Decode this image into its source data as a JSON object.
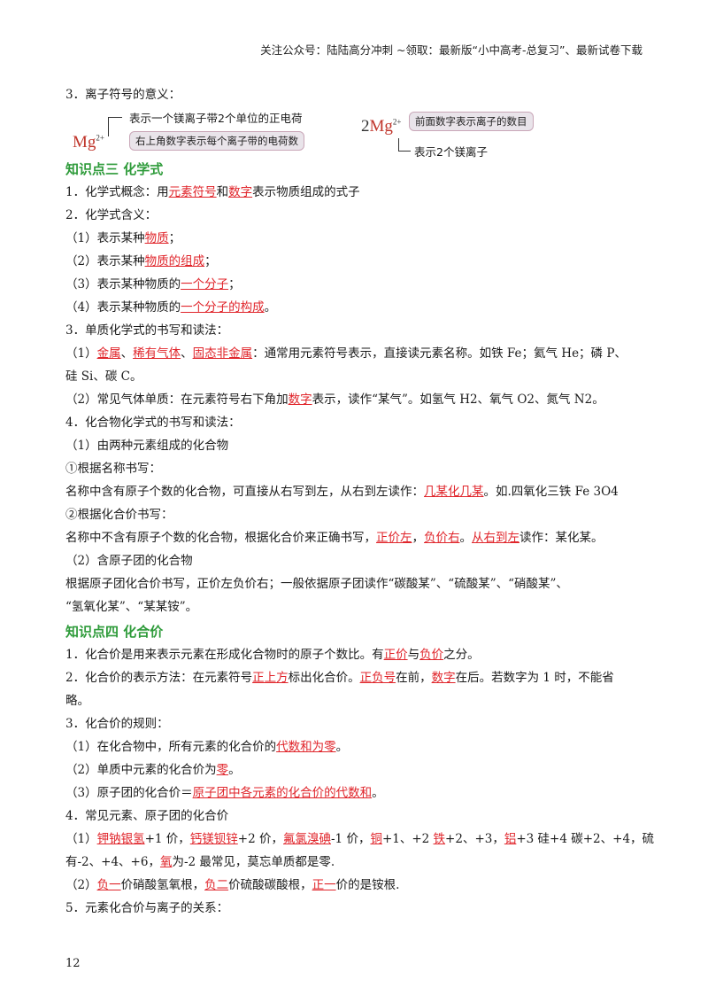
{
  "header": {
    "text": "关注公众号：陆陆高分冲刺  ~领取：最新版“小中高考-总复习”、最新试卷下载"
  },
  "intro": "3．离子符号的意义：",
  "diagram": {
    "left_symbol": "Mg",
    "left_sup": "2+",
    "left_top": "表示一个镁离子带2个单位的正电荷",
    "left_box": "右上角数字表示每个离子带的电荷数",
    "right_coef": "2",
    "right_symbol": "Mg",
    "right_sup": "2+",
    "right_box": "前面数字表示离子的数目",
    "right_bottom": "表示2个镁离子"
  },
  "sec3": {
    "title": "知识点三   化学式",
    "l1": [
      "1．化学式概念：用",
      "元素符号",
      "和",
      "数字",
      "表示物质组成的式子"
    ],
    "l2": "2．化学式含义：",
    "l3": [
      "（1）表示某种",
      "物质",
      "；"
    ],
    "l4": [
      "（2）表示某种",
      "物质的组成",
      "；"
    ],
    "l5": [
      "（3）表示某种物质的",
      "一个分子",
      "；"
    ],
    "l6": [
      "（4）表示某种物质的",
      "一个分子的构成",
      "。"
    ],
    "l7": "3．单质化学式的书写和读法：",
    "l8": [
      "（1）",
      "金属",
      "、",
      "稀有气体",
      "、",
      "固态非金属",
      "：通常用元素符号表示，直接读元素名称。如铁 Fe；氦气 He；磷 P、"
    ],
    "l8b": "硅 Si、碳 C。",
    "l9": [
      "（2）常见气体单质：在元素符号右下角加",
      "数字",
      "表示，读作“某气”。如氢气 H2、氧气 O2、氮气 N2。"
    ],
    "l10": "4．化合物化学式的书写和读法：",
    "l11": "（1）由两种元素组成的化合物",
    "l12": "①根据名称书写：",
    "l13": [
      "名称中含有原子个数的化合物，可直接从右写到左，从右到左读作：",
      "几某化几某",
      "。如.四氧化三铁 Fe  3O4"
    ],
    "l14": "②根据化合价书写：",
    "l15": [
      "名称中不含有原子个数的化合物，根据化合价来正确书写，",
      "正价左",
      "，",
      "负价右",
      "。",
      "从右到左",
      "读作：某化某。"
    ],
    "l16": "（2）含原子团的化合物",
    "l17": "根据原子团化合价书写，正价左负价右；一般依据原子团读作“碳酸某”、“硫酸某”、“硝酸某”、",
    "l17b": "“氢氧化某”、“某某铵”。"
  },
  "sec4": {
    "title": "知识点四   化合价",
    "l1": [
      "1．化合价是用来表示元素在形成化合物时的原子个数比。有",
      "正价",
      "与",
      "负价",
      "之分。"
    ],
    "l2": [
      "2．化合价的表示方法：在元素符号",
      "正上方",
      "标出化合价。",
      "正负号",
      "在前，",
      "数字",
      "在后。若数字为 1 时，不能省"
    ],
    "l2b": "略。",
    "l3": "3．化合价的规则：",
    "l4": [
      "（1）在化合物中，所有元素的化合价的",
      "代数和为零",
      "。"
    ],
    "l5": [
      "（2）单质中元素的化合价为",
      "零",
      "。"
    ],
    "l6": [
      "（3）原子团的化合价＝",
      "原子团中各元素的化合价的代数和",
      "。"
    ],
    "l7": "4．常见元素、原子团的化合价",
    "l8": [
      "（1）",
      "钾钠银氢",
      "+1 价，",
      "钙镁钡锌",
      "+2 价，",
      "氟氯溴碘",
      "-1 价，",
      "铜",
      "+1、+2 ",
      "铁",
      "+2、+3，",
      "铝",
      "+3 硅+4 碳+2、+4，硫"
    ],
    "l8b": [
      "有-2、+4、+6，",
      "氧",
      "为-2 最常见，莫忘单质都是零."
    ],
    "l9": [
      "（2）",
      "负一",
      "价硝酸氢氧根，",
      "负二",
      "价硫酸碳酸根，",
      "正一",
      "价的是铵根."
    ],
    "l10": "5．元素化合价与离子的关系："
  },
  "page_number": "12"
}
